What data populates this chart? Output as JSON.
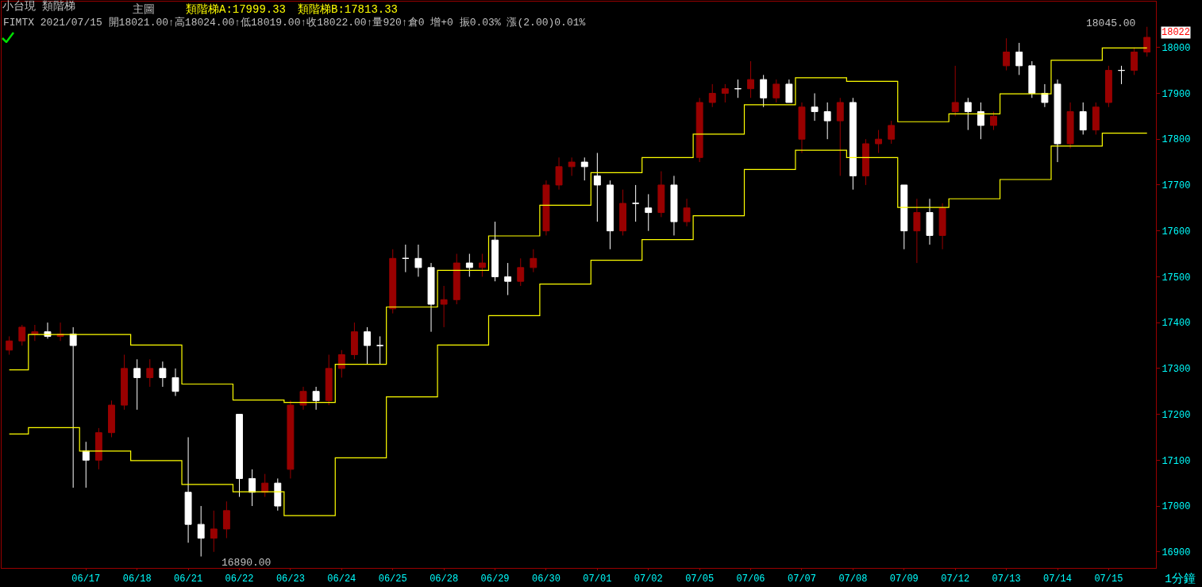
{
  "chart_data": {
    "type": "candlestick",
    "title": "小台現 類階梯",
    "subtitle": "FIMTX 2021/07/15 開18021.00↑高18024.00↑低18019.00↑收18022.00↑量920↑倉0 增+0 振0.03% 漲(2.00)0.01%",
    "annotations": [
      "主圖",
      "類階梯A:17999.33",
      "類階梯B:17813.33",
      "18045.00",
      "16890.00",
      "18022",
      "1分鐘"
    ],
    "categories": [
      null,
      null,
      null,
      null,
      null,
      null,
      "06/17",
      null,
      null,
      null,
      "06/18",
      null,
      null,
      null,
      "06/21",
      null,
      null,
      null,
      "06/22",
      null,
      null,
      null,
      "06/23",
      null,
      null,
      null,
      "06/24",
      null,
      null,
      null,
      "06/25",
      null,
      null,
      null,
      "06/28",
      null,
      null,
      null,
      "06/29",
      null,
      null,
      null,
      "06/30",
      null,
      null,
      null,
      "07/01",
      null,
      null,
      null,
      "07/02",
      null,
      null,
      null,
      "07/05",
      null,
      null,
      null,
      "07/06",
      null,
      null,
      null,
      "07/07",
      null,
      null,
      null,
      "07/08",
      null,
      null,
      null,
      "07/09",
      null,
      null,
      null,
      "07/12",
      null,
      null,
      null,
      "07/13",
      null,
      null,
      null,
      "07/14",
      null,
      null,
      null,
      "07/15",
      null,
      null,
      null
    ],
    "colors": [
      "#990000",
      "#990000",
      "#990000",
      "#ffffff",
      "#990000",
      "#ffffff",
      "#ffffff",
      "#990000",
      "#990000",
      "#990000",
      "#ffffff",
      "#990000",
      "#ffffff",
      "#ffffff",
      "#ffffff",
      "#ffffff",
      "#990000",
      "#990000",
      "#ffffff",
      "#ffffff",
      "#990000",
      "#ffffff",
      "#990000",
      "#990000",
      "#ffffff",
      "#990000",
      "#990000",
      "#990000",
      "#ffffff",
      "#ffffff",
      "#990000",
      "#ffffff",
      "#ffffff",
      "#ffffff",
      "#990000",
      "#990000",
      "#ffffff",
      "#990000",
      "#ffffff",
      "#ffffff",
      "#990000",
      "#990000",
      "#990000",
      "#990000",
      "#990000",
      "#ffffff",
      "#ffffff",
      "#ffffff",
      "#990000",
      "#ffffff",
      "#ffffff",
      "#990000",
      "#ffffff",
      "#990000",
      "#990000",
      "#990000",
      "#990000",
      "#ffffff",
      "#990000",
      "#ffffff",
      "#990000",
      "#ffffff",
      "#990000",
      "#ffffff",
      "#ffffff",
      "#990000",
      "#ffffff",
      "#990000",
      "#990000",
      "#990000",
      "#ffffff",
      "#990000",
      "#ffffff",
      "#990000",
      "#990000",
      "#ffffff",
      "#ffffff",
      "#990000",
      "#990000",
      "#ffffff",
      "#ffffff",
      "#ffffff",
      "#ffffff",
      "#990000",
      "#ffffff",
      "#990000",
      "#990000",
      "#ffffff",
      "#990000",
      "#990000"
    ],
    "ohlc": [
      [
        17340,
        17370,
        17330,
        17360
      ],
      [
        17360,
        17395,
        17350,
        17390
      ],
      [
        17375,
        17395,
        17360,
        17380
      ],
      [
        17380,
        17400,
        17365,
        17370
      ],
      [
        17370,
        17400,
        17360,
        17375
      ],
      [
        17375,
        17390,
        17040,
        17350
      ],
      [
        17120,
        17140,
        17040,
        17100
      ],
      [
        17100,
        17170,
        17080,
        17160
      ],
      [
        17160,
        17230,
        17150,
        17220
      ],
      [
        17220,
        17330,
        17210,
        17300
      ],
      [
        17300,
        17320,
        17210,
        17280
      ],
      [
        17280,
        17320,
        17260,
        17300
      ],
      [
        17300,
        17315,
        17260,
        17280
      ],
      [
        17280,
        17300,
        17240,
        17250
      ],
      [
        17030,
        17150,
        16920,
        16960
      ],
      [
        16960,
        17000,
        16890,
        16930
      ],
      [
        16930,
        16990,
        16900,
        16950
      ],
      [
        16950,
        17010,
        16930,
        16990
      ],
      [
        17200,
        17200,
        17020,
        17060
      ],
      [
        17060,
        17080,
        17000,
        17030
      ],
      [
        17030,
        17070,
        17020,
        17050
      ],
      [
        17050,
        17060,
        16990,
        17000
      ],
      [
        17080,
        17230,
        17060,
        17220
      ],
      [
        17220,
        17260,
        17210,
        17250
      ],
      [
        17250,
        17260,
        17210,
        17230
      ],
      [
        17230,
        17330,
        17220,
        17300
      ],
      [
        17300,
        17340,
        17280,
        17330
      ],
      [
        17330,
        17400,
        17320,
        17380
      ],
      [
        17380,
        17390,
        17310,
        17350
      ],
      [
        17350,
        17370,
        17310,
        17350
      ],
      [
        17430,
        17560,
        17420,
        17540
      ],
      [
        17540,
        17570,
        17510,
        17540
      ],
      [
        17540,
        17570,
        17500,
        17520
      ],
      [
        17520,
        17530,
        17380,
        17440
      ],
      [
        17440,
        17480,
        17390,
        17450
      ],
      [
        17450,
        17550,
        17440,
        17530
      ],
      [
        17530,
        17550,
        17500,
        17520
      ],
      [
        17520,
        17550,
        17500,
        17530
      ],
      [
        17580,
        17620,
        17490,
        17500
      ],
      [
        17500,
        17530,
        17460,
        17490
      ],
      [
        17490,
        17540,
        17480,
        17520
      ],
      [
        17520,
        17560,
        17510,
        17540
      ],
      [
        17600,
        17710,
        17590,
        17700
      ],
      [
        17700,
        17760,
        17690,
        17740
      ],
      [
        17740,
        17760,
        17720,
        17750
      ],
      [
        17750,
        17760,
        17710,
        17740
      ],
      [
        17720,
        17770,
        17620,
        17700
      ],
      [
        17700,
        17710,
        17560,
        17600
      ],
      [
        17600,
        17690,
        17590,
        17660
      ],
      [
        17660,
        17700,
        17620,
        17660
      ],
      [
        17650,
        17680,
        17600,
        17640
      ],
      [
        17640,
        17730,
        17630,
        17700
      ],
      [
        17700,
        17720,
        17590,
        17620
      ],
      [
        17620,
        17670,
        17610,
        17650
      ],
      [
        17760,
        17890,
        17750,
        17880
      ],
      [
        17880,
        17920,
        17870,
        17900
      ],
      [
        17900,
        17920,
        17880,
        17910
      ],
      [
        17910,
        17930,
        17890,
        17910
      ],
      [
        17910,
        17970,
        17890,
        17930
      ],
      [
        17930,
        17940,
        17870,
        17890
      ],
      [
        17890,
        17930,
        17880,
        17920
      ],
      [
        17920,
        17930,
        17880,
        17880
      ],
      [
        17800,
        17880,
        17770,
        17870
      ],
      [
        17870,
        17900,
        17840,
        17860
      ],
      [
        17860,
        17880,
        17800,
        17840
      ],
      [
        17840,
        17890,
        17720,
        17880
      ],
      [
        17880,
        17890,
        17690,
        17720
      ],
      [
        17720,
        17800,
        17700,
        17790
      ],
      [
        17790,
        17820,
        17770,
        17800
      ],
      [
        17800,
        17840,
        17790,
        17830
      ],
      [
        17700,
        17700,
        17560,
        17600
      ],
      [
        17600,
        17670,
        17530,
        17640
      ],
      [
        17640,
        17670,
        17570,
        17590
      ],
      [
        17590,
        17660,
        17560,
        17650
      ],
      [
        17860,
        17960,
        17850,
        17880
      ],
      [
        17880,
        17890,
        17820,
        17860
      ],
      [
        17860,
        17880,
        17800,
        17830
      ],
      [
        17830,
        17860,
        17820,
        17850
      ],
      [
        17960,
        18020,
        17950,
        17990
      ],
      [
        17990,
        18010,
        17940,
        17960
      ],
      [
        17960,
        17970,
        17890,
        17900
      ],
      [
        17900,
        17920,
        17870,
        17880
      ],
      [
        17920,
        17930,
        17750,
        17790
      ],
      [
        17790,
        17880,
        17780,
        17860
      ],
      [
        17860,
        17880,
        17810,
        17820
      ],
      [
        17820,
        17880,
        17810,
        17870
      ],
      [
        17880,
        17960,
        17870,
        17950
      ],
      [
        17950,
        17960,
        17920,
        17950
      ],
      [
        17950,
        18000,
        17940,
        17990
      ],
      [
        17990,
        18045,
        17980,
        18022
      ]
    ],
    "series": [
      {
        "type": "step",
        "color": "#ffff00",
        "values": [
          17297,
          17297,
          17374,
          17374,
          17374,
          17374,
          17374,
          17374,
          17374,
          17374,
          17351,
          17351,
          17351,
          17351,
          17266,
          17266,
          17266,
          17266,
          17231,
          17231,
          17231,
          17231,
          17226,
          17226,
          17226,
          17226,
          17309,
          17309,
          17309,
          17309,
          17434,
          17434,
          17434,
          17434,
          17514,
          17514,
          17514,
          17514,
          17589,
          17589,
          17589,
          17589,
          17656,
          17656,
          17656,
          17656,
          17727,
          17727,
          17727,
          17727,
          17760,
          17760,
          17760,
          17760,
          17811,
          17811,
          17811,
          17811,
          17875,
          17875,
          17875,
          17875,
          17934,
          17934,
          17934,
          17934,
          17926,
          17926,
          17926,
          17926,
          17838,
          17838,
          17838,
          17838,
          17855,
          17855,
          17855,
          17855,
          17899,
          17899,
          17899,
          17899,
          17972,
          17972,
          17972,
          17972,
          17999,
          17999,
          17999,
          17999
        ]
      },
      {
        "type": "step",
        "color": "#ffff00",
        "values": [
          17157,
          17157,
          17171,
          17171,
          17171,
          17171,
          17120,
          17120,
          17120,
          17120,
          17099,
          17099,
          17099,
          17099,
          17047,
          17047,
          17047,
          17047,
          17031,
          17031,
          17031,
          17031,
          16979,
          16979,
          16979,
          16979,
          17105,
          17105,
          17105,
          17105,
          17238,
          17238,
          17238,
          17238,
          17351,
          17351,
          17351,
          17351,
          17415,
          17415,
          17415,
          17415,
          17484,
          17484,
          17484,
          17484,
          17536,
          17536,
          17536,
          17536,
          17581,
          17581,
          17581,
          17581,
          17633,
          17633,
          17633,
          17633,
          17734,
          17734,
          17734,
          17734,
          17776,
          17776,
          17776,
          17776,
          17760,
          17760,
          17760,
          17760,
          17651,
          17651,
          17651,
          17651,
          17670,
          17670,
          17670,
          17670,
          17712,
          17712,
          17712,
          17712,
          17785,
          17785,
          17785,
          17785,
          17813,
          17813,
          17813,
          17813
        ]
      }
    ],
    "ylim": [
      16865,
      18100
    ],
    "yticks": [
      16900,
      17000,
      17100,
      17200,
      17300,
      17400,
      17500,
      17600,
      17700,
      17800,
      17900,
      18000
    ],
    "grid": false
  }
}
